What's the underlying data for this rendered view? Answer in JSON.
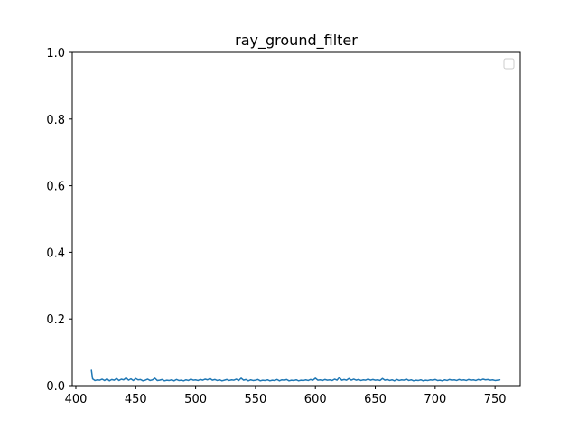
{
  "chart_data": {
    "type": "line",
    "title": "ray_ground_filter",
    "xlabel": "",
    "ylabel": "",
    "xlim": [
      397,
      771
    ],
    "ylim": [
      0,
      1.0
    ],
    "xticks": [
      400,
      450,
      500,
      550,
      600,
      650,
      700,
      750
    ],
    "yticks": [
      0.0,
      0.2,
      0.4,
      0.6,
      0.8,
      1.0
    ],
    "xtick_labels": [
      "400",
      "450",
      "500",
      "550",
      "600",
      "650",
      "700",
      "750"
    ],
    "ytick_labels": [
      "0.0",
      "0.2",
      "0.4",
      "0.6",
      "0.8",
      "1.0"
    ],
    "grid": false,
    "legend": {
      "placement": "upper-right",
      "entries": []
    },
    "colors": {
      "series": "#1f77b4",
      "axes": "#000000",
      "legend_border": "#cccccc",
      "background": "#ffffff"
    },
    "series": [
      {
        "color": "#1f77b4",
        "x": [
          413,
          414,
          416,
          418,
          420,
          422,
          424,
          426,
          428,
          430,
          432,
          434,
          436,
          438,
          440,
          442,
          444,
          446,
          448,
          450,
          452,
          454,
          456,
          458,
          460,
          462,
          464,
          466,
          468,
          470,
          472,
          474,
          476,
          478,
          480,
          482,
          484,
          486,
          488,
          490,
          492,
          494,
          496,
          498,
          500,
          502,
          504,
          506,
          508,
          510,
          512,
          514,
          516,
          518,
          520,
          522,
          524,
          526,
          528,
          530,
          532,
          534,
          536,
          538,
          540,
          542,
          544,
          546,
          548,
          550,
          552,
          554,
          556,
          558,
          560,
          562,
          564,
          566,
          568,
          570,
          572,
          574,
          576,
          578,
          580,
          582,
          584,
          586,
          588,
          590,
          592,
          594,
          596,
          598,
          600,
          602,
          604,
          606,
          608,
          610,
          612,
          614,
          616,
          618,
          620,
          622,
          624,
          626,
          628,
          630,
          632,
          634,
          636,
          638,
          640,
          642,
          644,
          646,
          648,
          650,
          652,
          654,
          656,
          658,
          660,
          662,
          664,
          666,
          668,
          670,
          672,
          674,
          676,
          678,
          680,
          682,
          684,
          686,
          688,
          690,
          692,
          694,
          696,
          698,
          700,
          702,
          704,
          706,
          708,
          710,
          712,
          714,
          716,
          718,
          720,
          722,
          724,
          726,
          728,
          730,
          732,
          734,
          736,
          738,
          740,
          742,
          744,
          746,
          748,
          750,
          752,
          754
        ],
        "y": [
          0.046,
          0.02,
          0.015,
          0.017,
          0.016,
          0.019,
          0.015,
          0.02,
          0.014,
          0.018,
          0.016,
          0.021,
          0.015,
          0.019,
          0.017,
          0.023,
          0.016,
          0.02,
          0.015,
          0.021,
          0.017,
          0.018,
          0.014,
          0.016,
          0.019,
          0.015,
          0.017,
          0.022,
          0.015,
          0.016,
          0.018,
          0.014,
          0.016,
          0.015,
          0.017,
          0.014,
          0.018,
          0.015,
          0.016,
          0.014,
          0.017,
          0.015,
          0.019,
          0.016,
          0.017,
          0.015,
          0.018,
          0.016,
          0.019,
          0.017,
          0.021,
          0.016,
          0.018,
          0.015,
          0.017,
          0.014,
          0.016,
          0.018,
          0.015,
          0.017,
          0.016,
          0.019,
          0.015,
          0.022,
          0.016,
          0.018,
          0.014,
          0.017,
          0.015,
          0.016,
          0.018,
          0.014,
          0.016,
          0.015,
          0.017,
          0.014,
          0.016,
          0.015,
          0.018,
          0.014,
          0.017,
          0.016,
          0.018,
          0.014,
          0.016,
          0.015,
          0.017,
          0.014,
          0.016,
          0.015,
          0.017,
          0.015,
          0.018,
          0.016,
          0.022,
          0.016,
          0.017,
          0.015,
          0.018,
          0.016,
          0.017,
          0.015,
          0.019,
          0.016,
          0.024,
          0.016,
          0.018,
          0.016,
          0.021,
          0.016,
          0.019,
          0.016,
          0.018,
          0.015,
          0.017,
          0.016,
          0.019,
          0.016,
          0.018,
          0.016,
          0.017,
          0.015,
          0.021,
          0.016,
          0.018,
          0.015,
          0.017,
          0.014,
          0.018,
          0.015,
          0.017,
          0.016,
          0.019,
          0.015,
          0.017,
          0.014,
          0.016,
          0.015,
          0.017,
          0.014,
          0.016,
          0.015,
          0.017,
          0.016,
          0.018,
          0.015,
          0.016,
          0.014,
          0.017,
          0.015,
          0.018,
          0.016,
          0.017,
          0.015,
          0.018,
          0.016,
          0.017,
          0.015,
          0.018,
          0.016,
          0.017,
          0.015,
          0.018,
          0.016,
          0.019,
          0.017,
          0.018,
          0.016,
          0.017,
          0.015,
          0.016,
          0.017
        ]
      }
    ]
  }
}
